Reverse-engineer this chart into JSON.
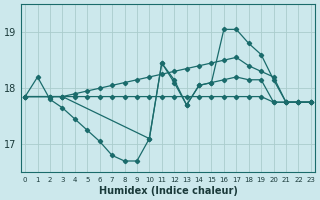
{
  "xlabel": "Humidex (Indice chaleur)",
  "bg_color": "#cce8ec",
  "grid_color": "#aacccc",
  "line_color": "#1a6b6b",
  "x_ticks": [
    0,
    1,
    2,
    3,
    4,
    5,
    6,
    7,
    8,
    9,
    10,
    11,
    12,
    13,
    14,
    15,
    16,
    17,
    18,
    19,
    20,
    21,
    22,
    23
  ],
  "y_ticks": [
    17,
    18,
    19
  ],
  "ylim": [
    16.5,
    19.5
  ],
  "xlim": [
    -0.3,
    23.3
  ],
  "series1_x": [
    0,
    1,
    2,
    3,
    4,
    5,
    6,
    7,
    8,
    9,
    10,
    11,
    12,
    13,
    14,
    15,
    16,
    17,
    18,
    19,
    20,
    21,
    22,
    23
  ],
  "series1_y": [
    17.85,
    18.2,
    17.8,
    17.65,
    17.45,
    17.25,
    17.05,
    16.8,
    16.7,
    16.7,
    17.1,
    18.45,
    18.1,
    17.7,
    18.05,
    18.1,
    18.15,
    18.2,
    18.15,
    18.15,
    17.75,
    17.75,
    17.75,
    17.75
  ],
  "series2_x": [
    0,
    2,
    3,
    4,
    5,
    6,
    7,
    8,
    9,
    10,
    11,
    12,
    13,
    14,
    15,
    16,
    17,
    18,
    19,
    20,
    21,
    22,
    23
  ],
  "series2_y": [
    17.85,
    17.85,
    17.85,
    17.85,
    17.85,
    17.85,
    17.85,
    17.85,
    17.85,
    17.85,
    17.85,
    17.85,
    17.85,
    17.85,
    17.85,
    17.85,
    17.85,
    17.85,
    17.85,
    17.75,
    17.75,
    17.75,
    17.75
  ],
  "series3_x": [
    0,
    2,
    3,
    10,
    11,
    12,
    13,
    14,
    15,
    16,
    17,
    18,
    19,
    20,
    21,
    22,
    23
  ],
  "series3_y": [
    17.85,
    17.85,
    17.85,
    17.1,
    18.45,
    18.15,
    17.7,
    18.05,
    18.1,
    19.05,
    19.05,
    18.8,
    18.6,
    18.15,
    17.75,
    17.75,
    17.75
  ],
  "series4_x": [
    0,
    2,
    3,
    4,
    5,
    6,
    7,
    8,
    9,
    10,
    11,
    12,
    13,
    14,
    15,
    16,
    17,
    18,
    19,
    20,
    21,
    22,
    23
  ],
  "series4_y": [
    17.85,
    17.85,
    17.85,
    17.9,
    17.95,
    18.0,
    18.05,
    18.1,
    18.15,
    18.2,
    18.25,
    18.3,
    18.35,
    18.4,
    18.45,
    18.5,
    18.55,
    18.4,
    18.3,
    18.2,
    17.75,
    17.75,
    17.75
  ]
}
